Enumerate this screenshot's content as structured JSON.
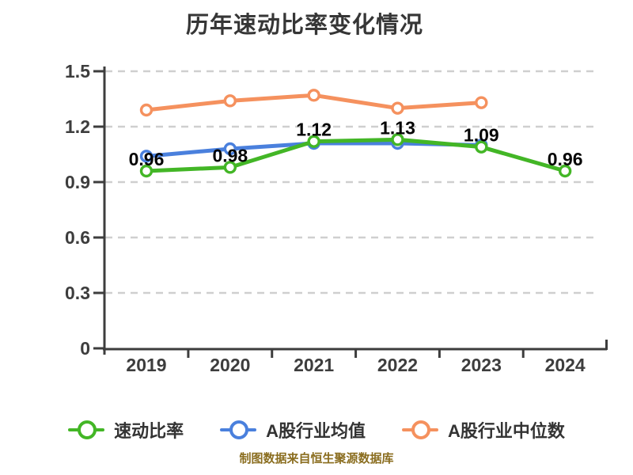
{
  "chart_data": {
    "type": "line",
    "title": "历年速动比率变化情况",
    "x": [
      2019,
      2020,
      2021,
      2022,
      2023,
      2024
    ],
    "xlabel": "",
    "ylabel": "",
    "ylim": [
      0,
      1.5
    ],
    "yticks": [
      0,
      0.3,
      0.6,
      0.9,
      1.2,
      1.5
    ],
    "grid": "horizontal-dashed",
    "legend_position": "bottom",
    "series": [
      {
        "name": "速动比率",
        "color": "#43b626",
        "x": [
          2019,
          2020,
          2021,
          2022,
          2023,
          2024
        ],
        "values": [
          0.96,
          0.98,
          1.12,
          1.13,
          1.09,
          0.96
        ],
        "point_labels": [
          "0.96",
          "0.98",
          "1.12",
          "1.13",
          "1.09",
          "0.96"
        ]
      },
      {
        "name": "A股行业均值",
        "color": "#4a80dd",
        "x": [
          2019,
          2020,
          2021,
          2022,
          2023
        ],
        "values": [
          1.04,
          1.08,
          1.11,
          1.11,
          1.1
        ],
        "point_labels": []
      },
      {
        "name": "A股行业中位数",
        "color": "#f5915e",
        "x": [
          2019,
          2020,
          2021,
          2022,
          2023
        ],
        "values": [
          1.29,
          1.34,
          1.37,
          1.3,
          1.33
        ],
        "point_labels": []
      }
    ],
    "source_note": "制图数据来自恒生聚源数据库"
  },
  "colors": {
    "axis": "#3d3d3d",
    "grid": "#cfcfcf",
    "tick_label": "#3d3d3d",
    "data_label": "#050505",
    "title": "#363636",
    "source_note": "#8a6d1f"
  }
}
